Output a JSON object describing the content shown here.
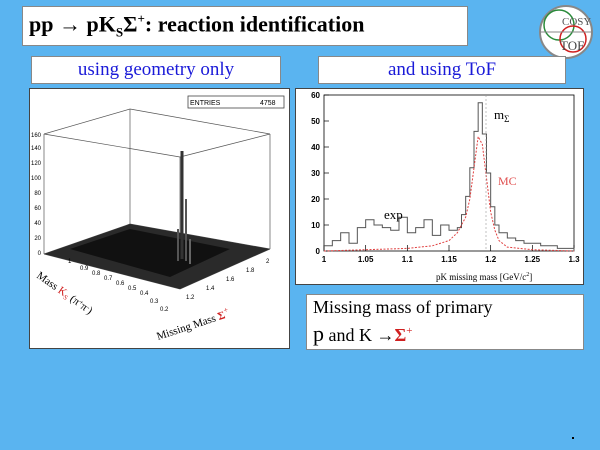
{
  "header": {
    "title_prefix": "pp ",
    "title_arrow": "→",
    "title_p": " pK",
    "title_sub": "S",
    "title_sigma": "Σ",
    "title_sup": "+",
    "title_suffix": ": reaction identification"
  },
  "logo": {
    "top_text": "COSY",
    "bottom_text": "TOF"
  },
  "labels": {
    "left": "using geometry only",
    "right": "and using ToF"
  },
  "plot3d": {
    "stats_label": "ENTRIES",
    "stats_value": "4758",
    "z_ticks": [
      "0",
      "20",
      "40",
      "60",
      "80",
      "100",
      "120",
      "140",
      "160"
    ],
    "x_ticks": [
      "1.2",
      "1.4",
      "1.6",
      "1.8",
      "2"
    ],
    "y_ticks": [
      "0.2",
      "0.3",
      "0.4",
      "0.5",
      "0.6",
      "0.7",
      "0.8",
      "0.9",
      "1"
    ],
    "y_label_prefix": "Mass ",
    "y_label_ks": "K",
    "y_label_ks_sub": "S",
    "y_label_paren": " (π",
    "y_label_plus": "+",
    "y_label_pi": "π",
    "y_label_minus": "-",
    "y_label_close": ")",
    "x_label_prefix": "Missing Mass ",
    "x_label_sigma": "Σ",
    "x_label_sup": "+"
  },
  "hist": {
    "y_ticks": [
      "0",
      "10",
      "20",
      "30",
      "40",
      "50",
      "60"
    ],
    "x_ticks": [
      "1",
      "1.05",
      "1.1",
      "1.15",
      "1.2",
      "1.25",
      "1.3"
    ],
    "x_label": "pK missing mass [GeV/c",
    "x_label_sup": "2",
    "x_label_close": "]",
    "label_m": "m",
    "label_m_sub": "Σ",
    "label_mc": "MC",
    "label_exp": "exp",
    "colors": {
      "exp": "#555555",
      "mc": "#e04040",
      "mc_label": "#e05050"
    }
  },
  "chart_data": {
    "type": "line",
    "xlabel": "pK missing mass [GeV/c2]",
    "xlim": [
      1.0,
      1.3
    ],
    "ylim": [
      0,
      60
    ],
    "series": [
      {
        "name": "exp",
        "x": [
          1.0,
          1.01,
          1.02,
          1.03,
          1.04,
          1.05,
          1.06,
          1.07,
          1.08,
          1.09,
          1.1,
          1.11,
          1.12,
          1.13,
          1.14,
          1.15,
          1.16,
          1.165,
          1.17,
          1.175,
          1.18,
          1.185,
          1.19,
          1.195,
          1.2,
          1.205,
          1.21,
          1.22,
          1.23,
          1.24,
          1.25,
          1.26,
          1.27,
          1.28,
          1.29,
          1.3
        ],
        "values": [
          2,
          4,
          7,
          3,
          9,
          12,
          10,
          9,
          8,
          13,
          7,
          9,
          12,
          6,
          10,
          8,
          9,
          14,
          21,
          32,
          46,
          57,
          45,
          30,
          17,
          10,
          7,
          5,
          4,
          3,
          3,
          2,
          2,
          1,
          1,
          0
        ]
      },
      {
        "name": "MC",
        "x": [
          1.0,
          1.05,
          1.1,
          1.13,
          1.15,
          1.16,
          1.17,
          1.175,
          1.18,
          1.185,
          1.19,
          1.195,
          1.2,
          1.205,
          1.21,
          1.22,
          1.25,
          1.3
        ],
        "values": [
          0,
          0.5,
          1,
          2,
          4,
          7,
          13,
          20,
          32,
          44,
          41,
          28,
          15,
          8,
          4,
          1.5,
          0.5,
          0
        ]
      }
    ]
  },
  "caption": {
    "line1": "Missing mass of primary",
    "line2_p": "p",
    "line2_mid": " and K ",
    "line2_arrow": "→",
    "line2_sigma": "Σ",
    "line2_sup": "+"
  },
  "footer": {
    "dot": "."
  }
}
